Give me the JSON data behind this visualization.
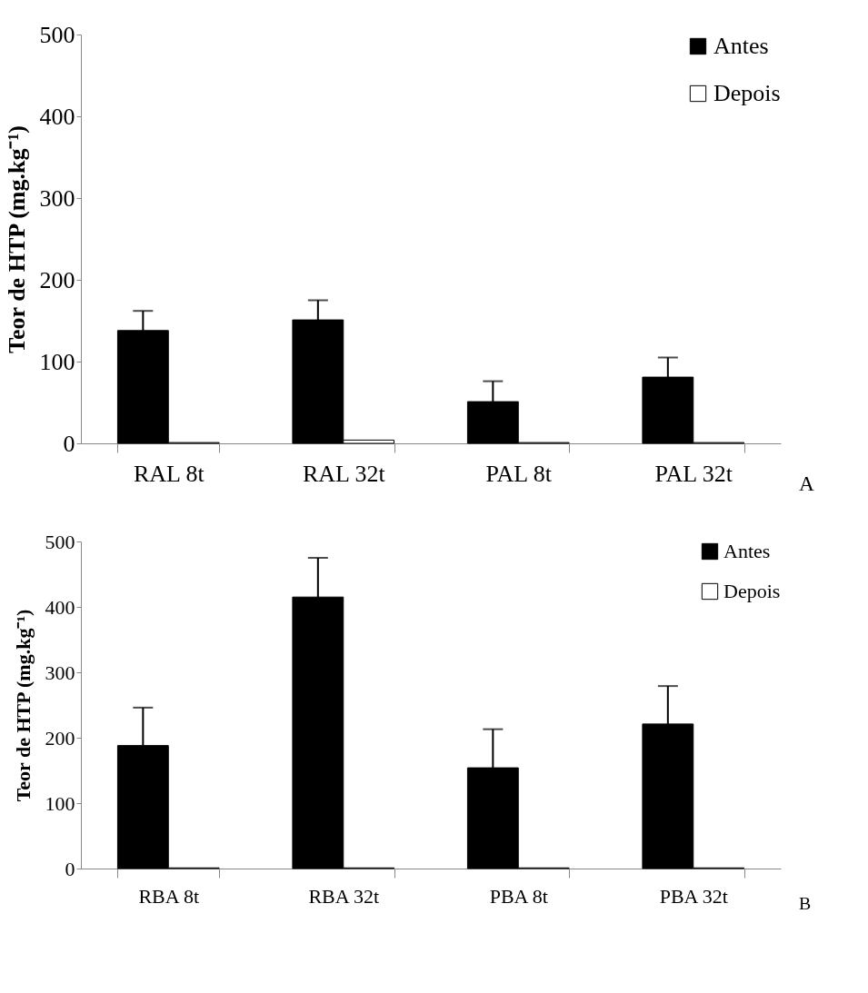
{
  "chart_data": [
    {
      "type": "bar",
      "categories": [
        "RAL 8t",
        "RAL 32t",
        "PAL 8t",
        "PAL 32t"
      ],
      "ylabel": "Teor de HTP (mg.kg⁻¹)",
      "series": [
        {
          "name": "Antes",
          "color": "#000000",
          "values": [
            138,
            151,
            51,
            81
          ],
          "errors": [
            [
              138,
              162
            ],
            [
              151,
              175
            ],
            [
              51,
              76
            ],
            [
              81,
              105
            ]
          ]
        },
        {
          "name": "Depois",
          "color": "#ffffff",
          "values": [
            1,
            4,
            1,
            1
          ]
        }
      ],
      "ylim": [
        0,
        500
      ],
      "yticks": [
        0,
        100,
        200,
        300,
        400,
        500
      ],
      "grid": false,
      "legend": "top right",
      "annotations": [
        "A"
      ]
    },
    {
      "type": "bar",
      "categories": [
        "RBA 8t",
        "RBA 32t",
        "PBA 8t",
        "PBA 32t"
      ],
      "ylabel": "Teor de HTP (mg.kg⁻¹)",
      "series": [
        {
          "name": "Antes",
          "color": "#000000",
          "values": [
            188,
            415,
            154,
            221
          ],
          "errors": [
            [
              188,
              246
            ],
            [
              415,
              475
            ],
            [
              154,
              213
            ],
            [
              221,
              279
            ]
          ]
        },
        {
          "name": "Depois",
          "color": "#ffffff",
          "values": [
            1,
            1,
            1,
            1
          ]
        }
      ],
      "ylim": [
        0,
        500
      ],
      "yticks": [
        0,
        100,
        200,
        300,
        400,
        500
      ],
      "grid": false,
      "legend": "top right",
      "annotations": [
        "B"
      ]
    }
  ]
}
